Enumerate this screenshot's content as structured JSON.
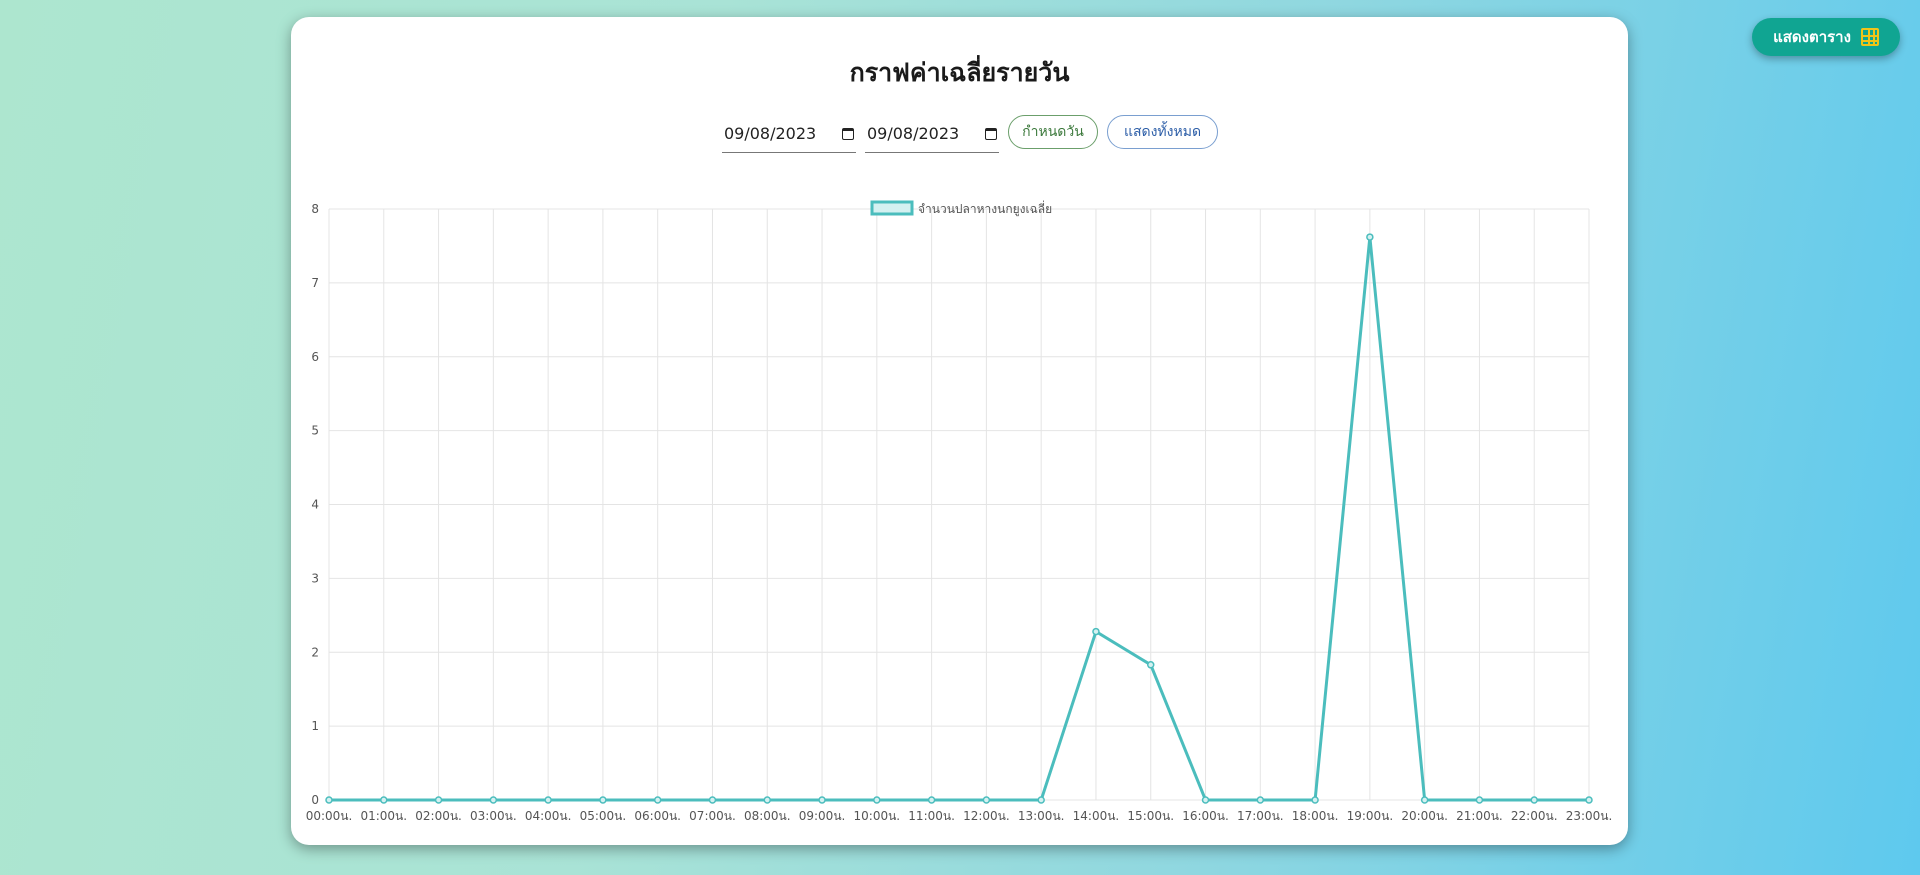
{
  "header": {
    "table_button_label": "แสดงตาราง",
    "table_icon": "table-grid-icon"
  },
  "card": {
    "title": "กราฟค่าเฉลี่ยรายวัน"
  },
  "filters": {
    "start_date": "09/08/2023",
    "end_date": "09/08/2023",
    "set_date_label": "กำหนดวัน",
    "show_all_label": "แสดงทั้งหมด"
  },
  "colors": {
    "accent": "#10a592",
    "line": "#4bbdbd",
    "fill": "#d4f1f1"
  },
  "chart_data": {
    "type": "line",
    "categories": [
      "00:00น.",
      "01:00น.",
      "02:00น.",
      "03:00น.",
      "04:00น.",
      "05:00น.",
      "06:00น.",
      "07:00น.",
      "08:00น.",
      "09:00น.",
      "10:00น.",
      "11:00น.",
      "12:00น.",
      "13:00น.",
      "14:00น.",
      "15:00น.",
      "16:00น.",
      "17:00น.",
      "18:00น.",
      "19:00น.",
      "20:00น.",
      "21:00น.",
      "22:00น.",
      "23:00น."
    ],
    "series": [
      {
        "name": "จำนวนปลาหางนกยูงเฉลี่ย",
        "values": [
          0,
          0,
          0,
          0,
          0,
          0,
          0,
          0,
          0,
          0,
          0,
          0,
          0,
          0,
          2.28,
          1.83,
          0,
          0,
          0,
          7.62,
          0,
          0,
          0,
          0
        ]
      }
    ],
    "ylim": [
      0,
      8
    ],
    "yticks": [
      0,
      1,
      2,
      3,
      4,
      5,
      6,
      7,
      8
    ],
    "grid": true,
    "legend": "top"
  }
}
